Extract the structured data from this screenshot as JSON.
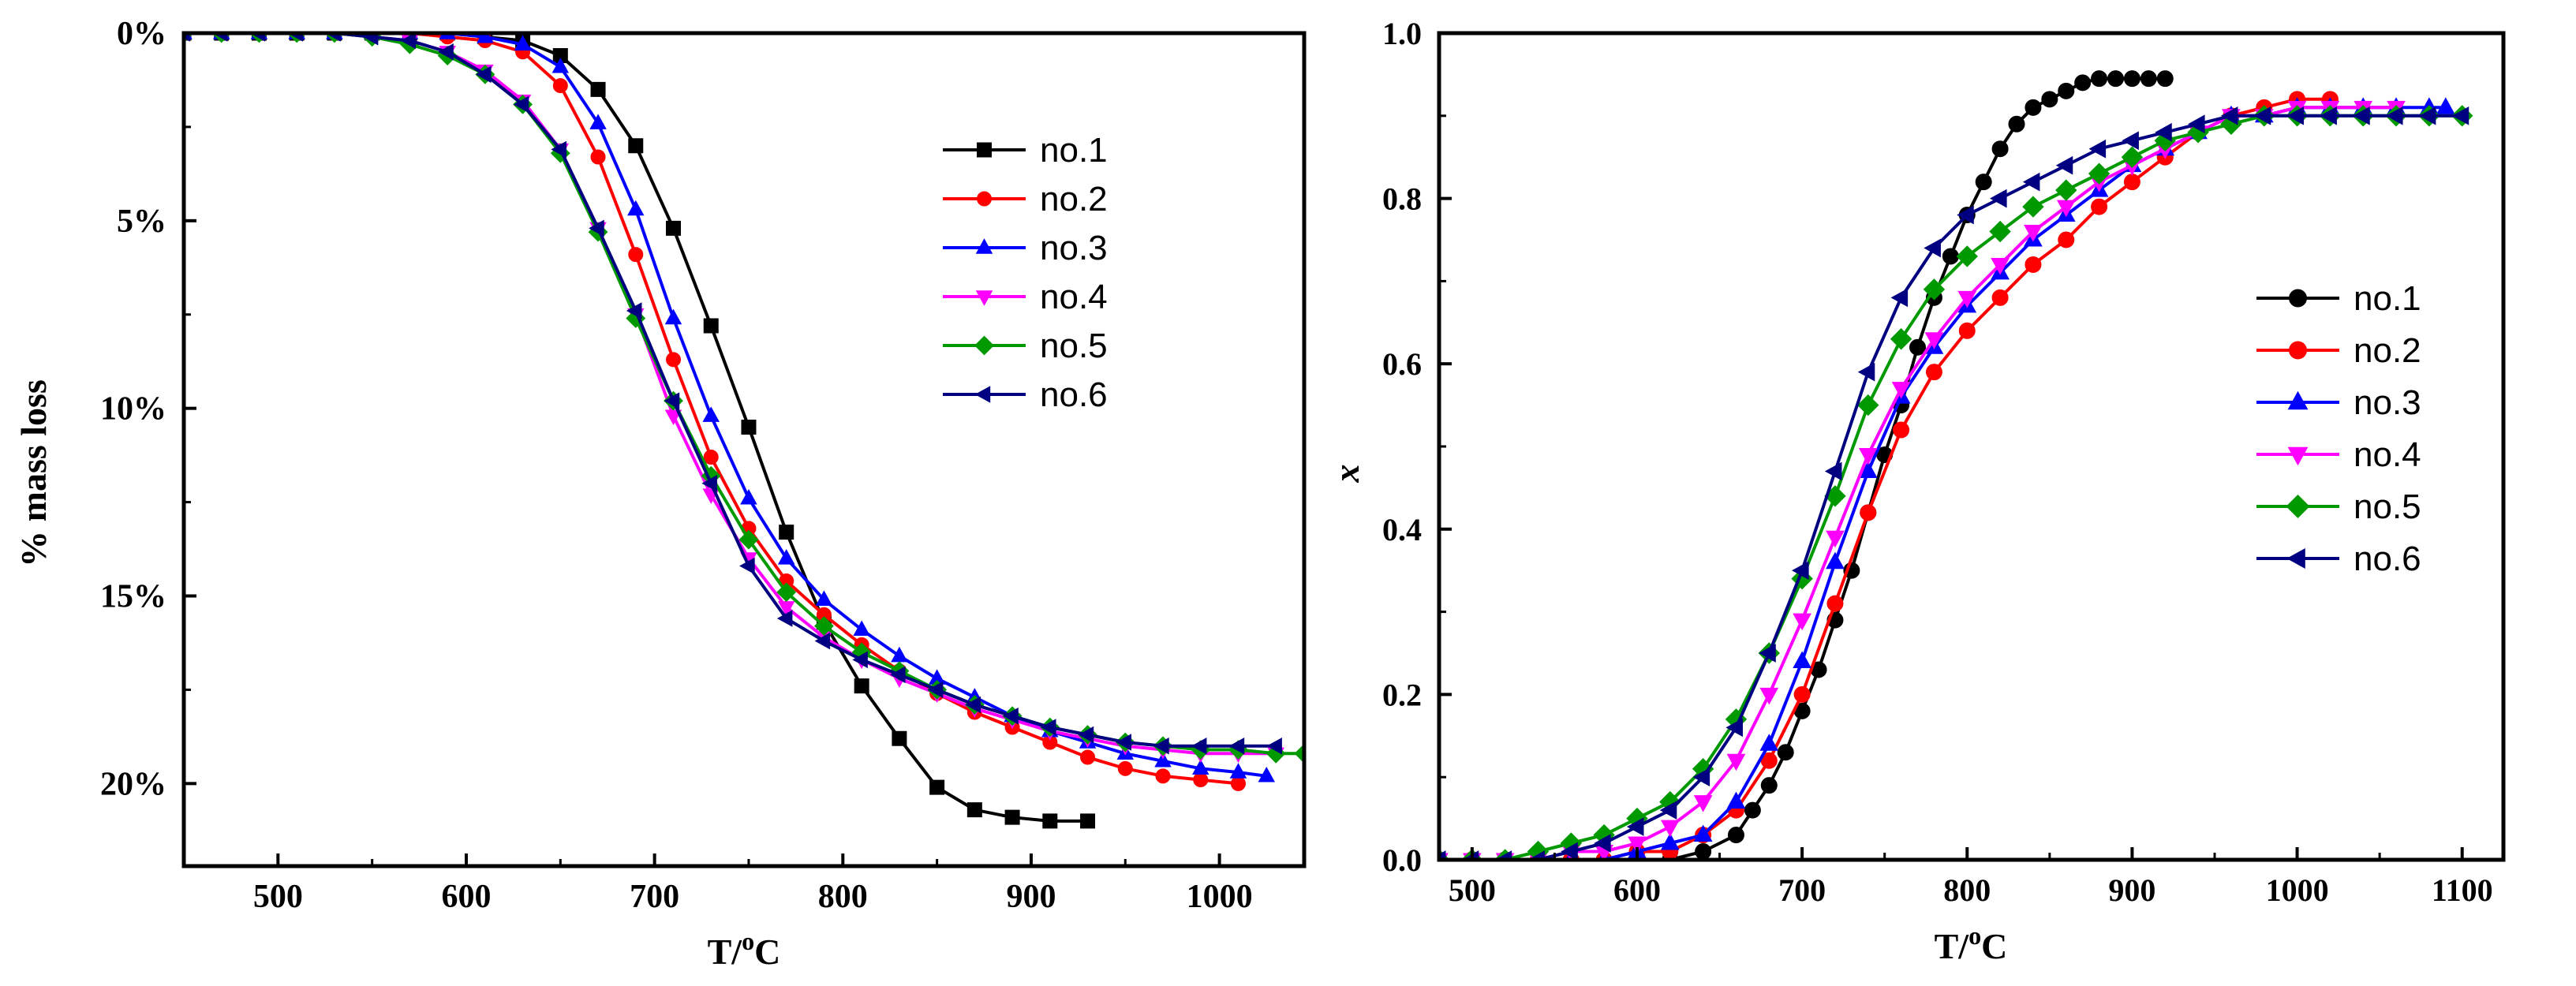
{
  "chart_data": [
    {
      "type": "line",
      "xlabel_main": "T/",
      "xlabel_sup": "o",
      "xlabel_unit": "C",
      "ylabel": "% mass loss",
      "xlim": [
        450,
        1045
      ],
      "ylim": [
        0,
        22.2
      ],
      "y_inverted": true,
      "x_ticks": [
        500,
        600,
        700,
        800,
        900,
        1000
      ],
      "y_ticks": [
        0,
        5,
        10,
        15,
        20
      ],
      "y_tick_labels": [
        "0%",
        "5%",
        "10%",
        "15%",
        "20%"
      ],
      "legend_position": "top-right",
      "series": [
        {
          "name": "no.1",
          "color": "#000000",
          "marker": "square",
          "x": [
            450,
            470,
            490,
            510,
            530,
            550,
            570,
            590,
            610,
            630,
            650,
            670,
            690,
            710,
            730,
            750,
            770,
            790,
            810,
            830,
            850,
            870,
            890,
            910,
            930
          ],
          "y": [
            0,
            0,
            0,
            0,
            0,
            0,
            0,
            0,
            0.1,
            0.2,
            0.6,
            1.5,
            3.0,
            5.2,
            7.8,
            10.5,
            13.3,
            15.7,
            17.4,
            18.8,
            20.1,
            20.7,
            20.9,
            21.0,
            21.0
          ]
        },
        {
          "name": "no.2",
          "color": "#ff0000",
          "marker": "circle",
          "x": [
            450,
            470,
            490,
            510,
            530,
            550,
            570,
            590,
            610,
            630,
            650,
            670,
            690,
            710,
            730,
            750,
            770,
            790,
            810,
            830,
            850,
            870,
            890,
            910,
            930,
            950,
            970,
            990,
            1010
          ],
          "y": [
            0,
            0,
            0,
            0,
            0,
            0,
            0,
            0.1,
            0.2,
            0.5,
            1.4,
            3.3,
            5.9,
            8.7,
            11.3,
            13.2,
            14.6,
            15.5,
            16.3,
            17.0,
            17.6,
            18.1,
            18.5,
            18.9,
            19.3,
            19.6,
            19.8,
            19.9,
            20.0
          ]
        },
        {
          "name": "no.3",
          "color": "#0000ff",
          "marker": "triangle-up",
          "x": [
            450,
            470,
            490,
            510,
            530,
            550,
            570,
            590,
            610,
            630,
            650,
            670,
            690,
            710,
            730,
            750,
            770,
            790,
            810,
            830,
            850,
            870,
            890,
            910,
            930,
            950,
            970,
            990,
            1010,
            1025
          ],
          "y": [
            0,
            0,
            0,
            0,
            0,
            0,
            0,
            0,
            0.1,
            0.3,
            0.9,
            2.4,
            4.7,
            7.6,
            10.2,
            12.4,
            14.0,
            15.1,
            15.9,
            16.6,
            17.2,
            17.7,
            18.2,
            18.6,
            18.9,
            19.2,
            19.4,
            19.6,
            19.7,
            19.8
          ]
        },
        {
          "name": "no.4",
          "color": "#ff00ff",
          "marker": "triangle-down",
          "x": [
            450,
            470,
            490,
            510,
            530,
            550,
            570,
            590,
            610,
            630,
            650,
            670,
            690,
            710,
            730,
            750,
            770,
            790,
            810,
            830,
            850,
            870,
            890,
            910,
            930,
            950,
            970,
            990,
            1010,
            1030
          ],
          "y": [
            0,
            0,
            0,
            0,
            0,
            0.1,
            0.2,
            0.5,
            1.0,
            1.8,
            3.1,
            5.2,
            7.5,
            10.2,
            12.3,
            14.0,
            15.3,
            16.1,
            16.7,
            17.2,
            17.6,
            18.0,
            18.3,
            18.6,
            18.8,
            19.0,
            19.1,
            19.2,
            19.2,
            19.2
          ]
        },
        {
          "name": "no.5",
          "color": "#009900",
          "marker": "diamond",
          "x": [
            450,
            470,
            490,
            510,
            530,
            550,
            570,
            590,
            610,
            630,
            650,
            670,
            690,
            710,
            730,
            750,
            770,
            790,
            810,
            830,
            850,
            870,
            890,
            910,
            930,
            950,
            970,
            990,
            1010,
            1030,
            1045
          ],
          "y": [
            0,
            0,
            0,
            0,
            0,
            0.1,
            0.3,
            0.6,
            1.1,
            1.9,
            3.2,
            5.3,
            7.6,
            9.8,
            11.8,
            13.5,
            14.9,
            15.8,
            16.5,
            17.0,
            17.5,
            17.9,
            18.2,
            18.5,
            18.7,
            18.9,
            19.0,
            19.1,
            19.1,
            19.2,
            19.2
          ]
        },
        {
          "name": "no.6",
          "color": "#000080",
          "marker": "triangle-left",
          "x": [
            450,
            470,
            490,
            510,
            530,
            550,
            570,
            590,
            610,
            630,
            650,
            670,
            690,
            710,
            730,
            750,
            770,
            790,
            810,
            830,
            850,
            870,
            890,
            910,
            930,
            950,
            970,
            990,
            1010,
            1030
          ],
          "y": [
            0,
            0,
            0,
            0,
            0,
            0.1,
            0.2,
            0.5,
            1.1,
            1.9,
            3.1,
            5.2,
            7.4,
            9.8,
            12.0,
            14.2,
            15.6,
            16.2,
            16.7,
            17.1,
            17.5,
            17.9,
            18.2,
            18.5,
            18.7,
            18.9,
            19.0,
            19.0,
            19.0,
            19.0
          ]
        }
      ]
    },
    {
      "type": "line",
      "xlabel_main": "T/",
      "xlabel_sup": "o",
      "xlabel_unit": "C",
      "ylabel": "x",
      "xlim": [
        480,
        1125
      ],
      "ylim": [
        0,
        1.0
      ],
      "x_ticks": [
        500,
        600,
        700,
        800,
        900,
        1000,
        1100
      ],
      "y_ticks": [
        0.0,
        0.2,
        0.4,
        0.6,
        0.8,
        1.0
      ],
      "y_tick_labels": [
        "0.0",
        "0.2",
        "0.4",
        "0.6",
        "0.8",
        "1.0"
      ],
      "legend_position": "center-right",
      "series": [
        {
          "name": "no.1",
          "color": "#000000",
          "marker": "circle",
          "x": [
            480,
            500,
            520,
            540,
            560,
            580,
            600,
            620,
            640,
            660,
            670,
            680,
            690,
            700,
            710,
            720,
            730,
            740,
            750,
            760,
            770,
            780,
            790,
            800,
            810,
            820,
            830,
            840,
            850,
            860,
            870,
            880,
            890,
            900,
            910,
            920
          ],
          "y": [
            0,
            0,
            0,
            0,
            0,
            0,
            0,
            0,
            0.01,
            0.03,
            0.06,
            0.09,
            0.13,
            0.18,
            0.23,
            0.29,
            0.35,
            0.42,
            0.49,
            0.55,
            0.62,
            0.68,
            0.73,
            0.78,
            0.82,
            0.86,
            0.89,
            0.91,
            0.92,
            0.93,
            0.94,
            0.945,
            0.945,
            0.945,
            0.945,
            0.945
          ]
        },
        {
          "name": "no.2",
          "color": "#ff0000",
          "marker": "circle",
          "x": [
            480,
            500,
            520,
            540,
            560,
            580,
            600,
            620,
            640,
            660,
            680,
            700,
            720,
            740,
            760,
            780,
            800,
            820,
            840,
            860,
            880,
            900,
            920,
            940,
            960,
            980,
            1000,
            1020
          ],
          "y": [
            0,
            0,
            0,
            0,
            0,
            0,
            0.01,
            0.01,
            0.03,
            0.06,
            0.12,
            0.2,
            0.31,
            0.42,
            0.52,
            0.59,
            0.64,
            0.68,
            0.72,
            0.75,
            0.79,
            0.82,
            0.85,
            0.88,
            0.9,
            0.91,
            0.92,
            0.92
          ]
        },
        {
          "name": "no.3",
          "color": "#0000ff",
          "marker": "triangle-up",
          "x": [
            480,
            500,
            520,
            540,
            560,
            580,
            600,
            620,
            640,
            660,
            680,
            700,
            720,
            740,
            760,
            780,
            800,
            820,
            840,
            860,
            880,
            900,
            920,
            940,
            960,
            980,
            1000,
            1020,
            1040,
            1060,
            1080,
            1090
          ],
          "y": [
            0,
            0,
            0,
            0,
            0,
            0,
            0.01,
            0.02,
            0.03,
            0.07,
            0.14,
            0.24,
            0.36,
            0.47,
            0.56,
            0.62,
            0.67,
            0.71,
            0.75,
            0.78,
            0.81,
            0.84,
            0.86,
            0.88,
            0.9,
            0.9,
            0.91,
            0.91,
            0.91,
            0.91,
            0.91,
            0.91
          ]
        },
        {
          "name": "no.4",
          "color": "#ff00ff",
          "marker": "triangle-down",
          "x": [
            480,
            500,
            520,
            540,
            560,
            580,
            600,
            620,
            640,
            660,
            680,
            700,
            720,
            740,
            760,
            780,
            800,
            820,
            840,
            860,
            880,
            900,
            920,
            940,
            960,
            980,
            1000,
            1020,
            1040,
            1060
          ],
          "y": [
            0,
            0,
            0,
            0,
            0.01,
            0.01,
            0.02,
            0.04,
            0.07,
            0.12,
            0.2,
            0.29,
            0.39,
            0.49,
            0.57,
            0.63,
            0.68,
            0.72,
            0.76,
            0.79,
            0.82,
            0.84,
            0.86,
            0.88,
            0.9,
            0.9,
            0.91,
            0.91,
            0.91,
            0.91
          ]
        },
        {
          "name": "no.5",
          "color": "#009900",
          "marker": "diamond",
          "x": [
            480,
            500,
            520,
            540,
            560,
            580,
            600,
            620,
            640,
            660,
            680,
            700,
            720,
            740,
            760,
            780,
            800,
            820,
            840,
            860,
            880,
            900,
            920,
            940,
            960,
            980,
            1000,
            1020,
            1040,
            1060,
            1080,
            1100
          ],
          "y": [
            0,
            0,
            0,
            0.01,
            0.02,
            0.03,
            0.05,
            0.07,
            0.11,
            0.17,
            0.25,
            0.34,
            0.44,
            0.55,
            0.63,
            0.69,
            0.73,
            0.76,
            0.79,
            0.81,
            0.83,
            0.85,
            0.87,
            0.88,
            0.89,
            0.9,
            0.9,
            0.9,
            0.9,
            0.9,
            0.9,
            0.9
          ]
        },
        {
          "name": "no.6",
          "color": "#000080",
          "marker": "triangle-left",
          "x": [
            480,
            500,
            520,
            540,
            560,
            580,
            600,
            620,
            640,
            660,
            680,
            700,
            720,
            740,
            760,
            780,
            800,
            820,
            840,
            860,
            880,
            900,
            920,
            940,
            960,
            980,
            1000,
            1020,
            1040,
            1060,
            1080,
            1100
          ],
          "y": [
            0,
            0,
            0,
            0,
            0.01,
            0.02,
            0.04,
            0.06,
            0.1,
            0.16,
            0.25,
            0.35,
            0.47,
            0.59,
            0.68,
            0.74,
            0.78,
            0.8,
            0.82,
            0.84,
            0.86,
            0.87,
            0.88,
            0.89,
            0.9,
            0.9,
            0.9,
            0.9,
            0.9,
            0.9,
            0.9,
            0.9
          ]
        }
      ]
    }
  ]
}
